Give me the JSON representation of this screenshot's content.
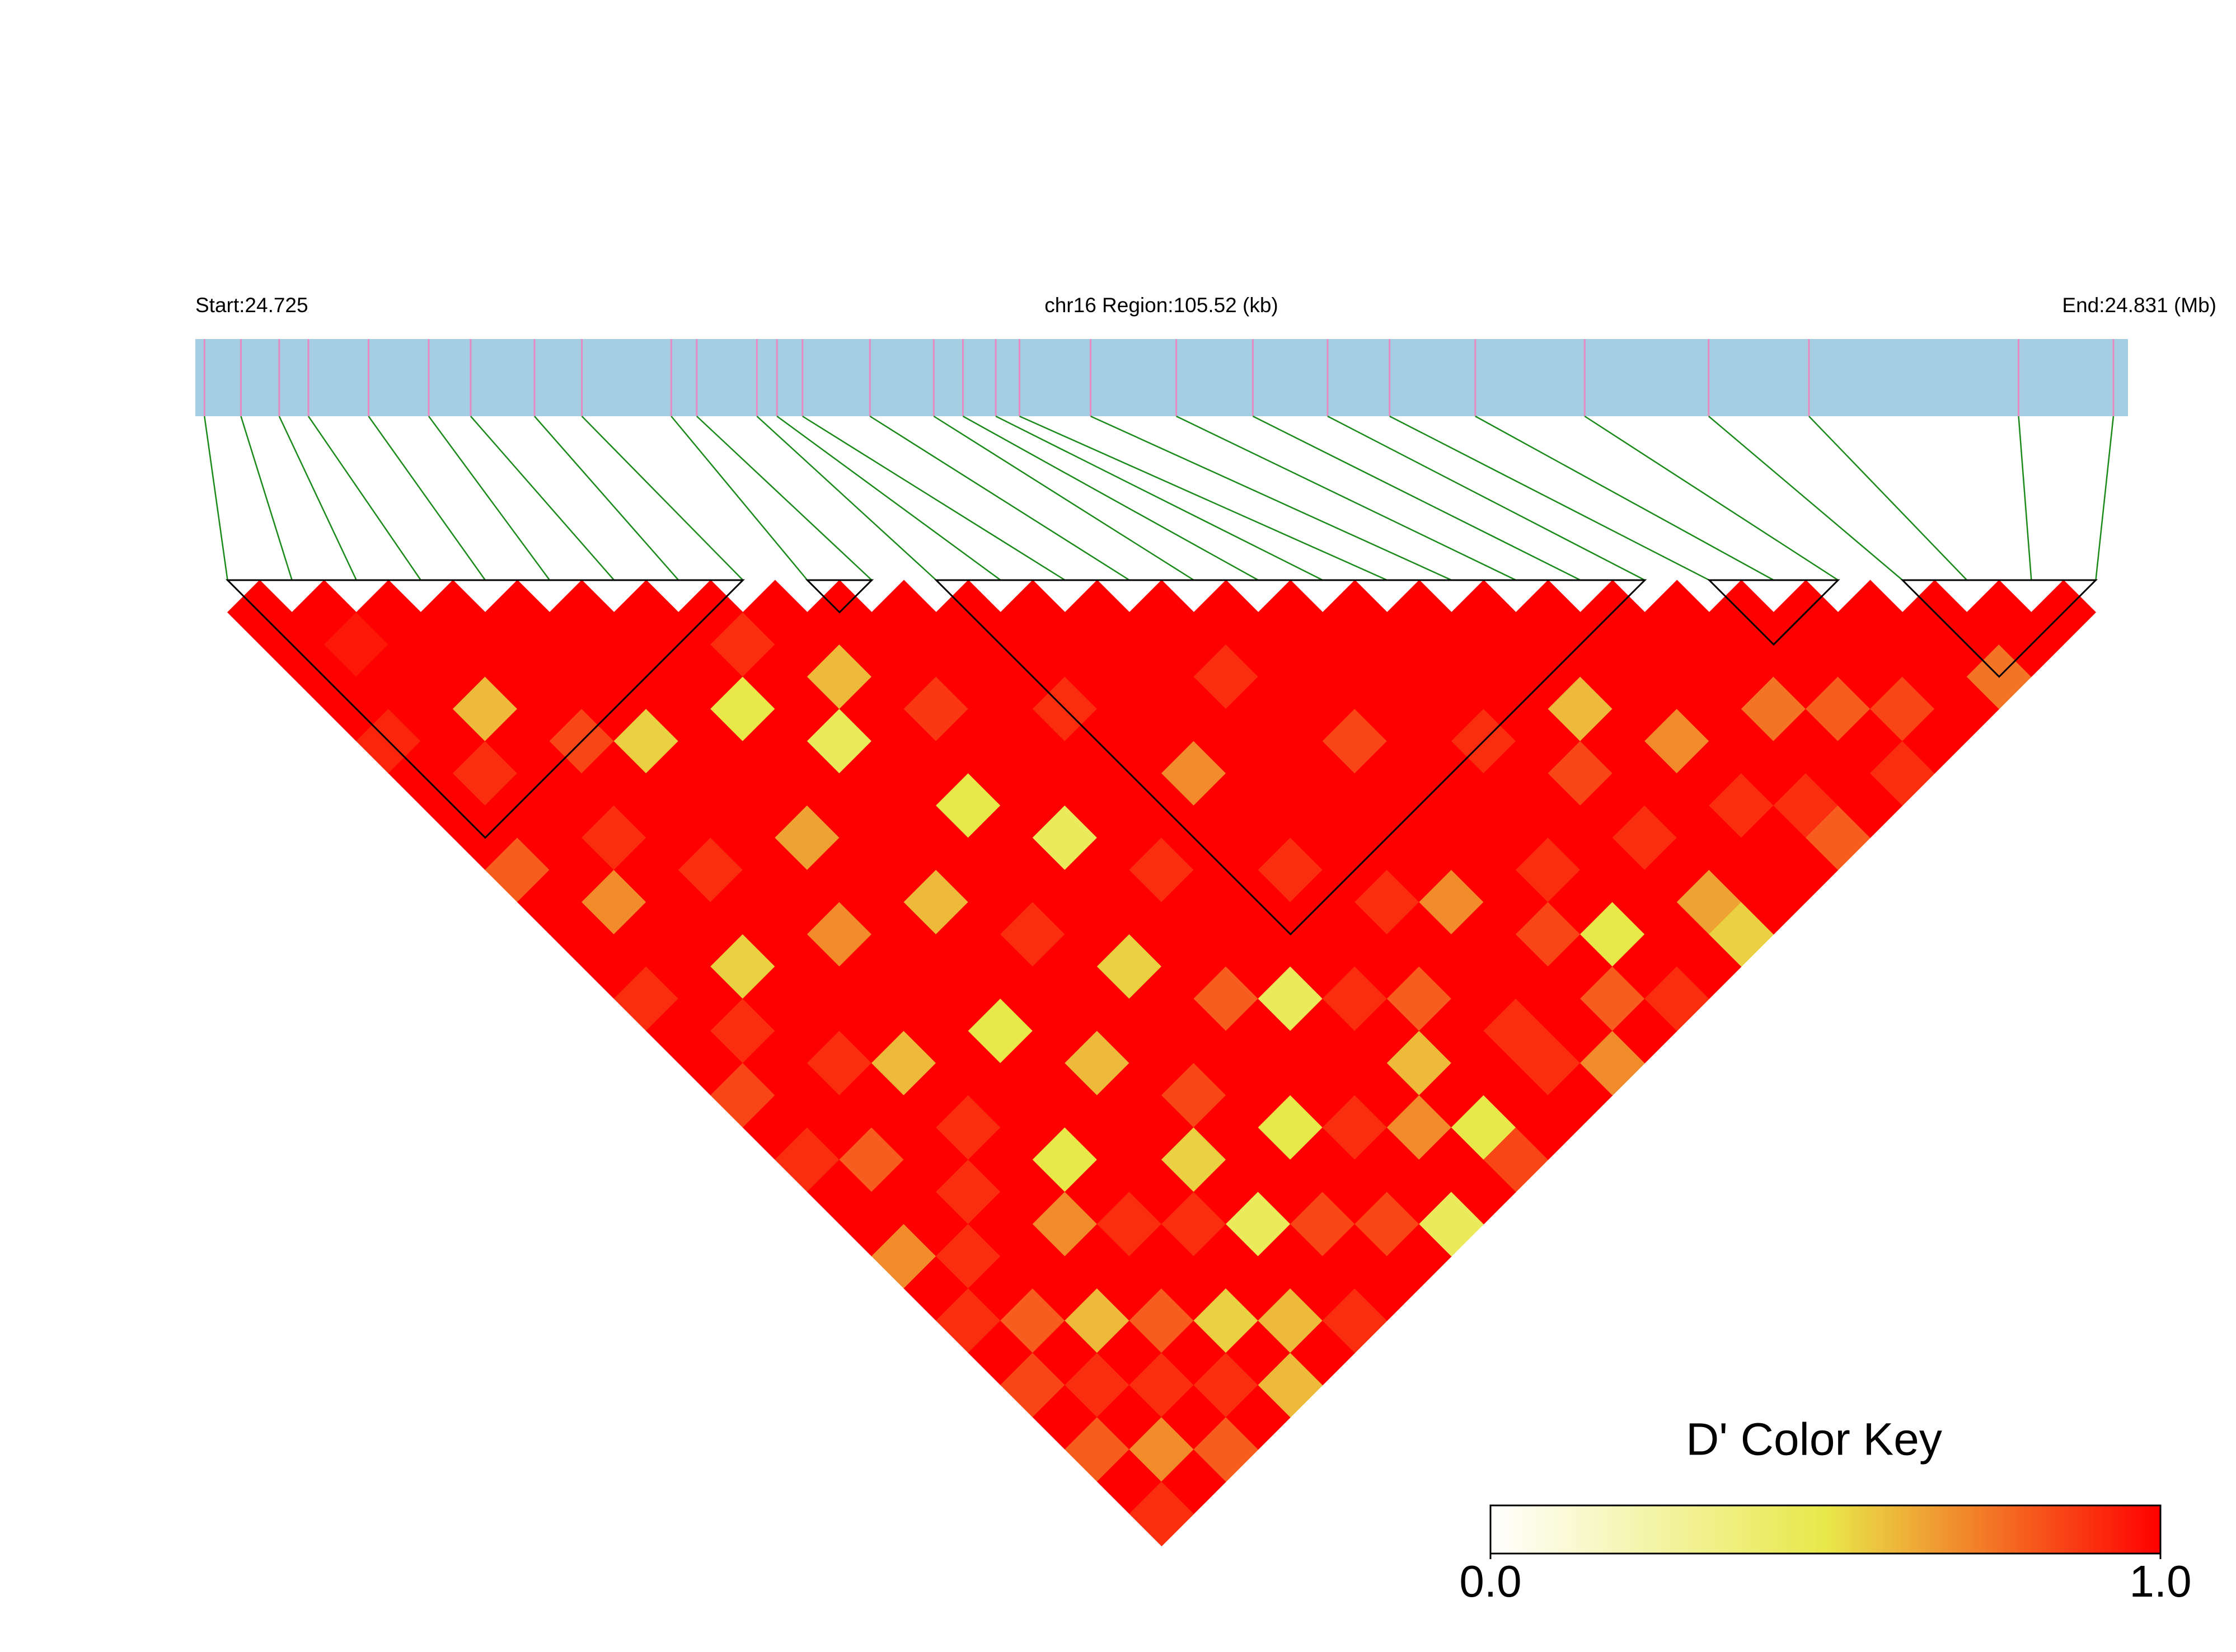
{
  "chart_data": {
    "type": "ld_heatmap",
    "start_label": "Start:24.725",
    "region_label": "chr16 Region:105.52 (kb)",
    "end_label": "End:24.831 (Mb)",
    "xlim": [
      24.725,
      24.831
    ],
    "snp_positions": [
      24.7255,
      24.7275,
      24.7296,
      24.7312,
      24.7345,
      24.7378,
      24.7401,
      24.7436,
      24.7462,
      24.7511,
      24.7525,
      24.7558,
      24.7569,
      24.7583,
      24.762,
      24.7655,
      24.7671,
      24.7689,
      24.7702,
      24.7741,
      24.7788,
      24.783,
      24.7871,
      24.7905,
      24.7952,
      24.8012,
      24.808,
      24.8135,
      24.825,
      24.8302
    ],
    "dprime": [
      [
        1
      ],
      [
        1,
        1
      ],
      [
        1,
        0.95,
        1
      ],
      [
        1,
        1,
        1,
        1
      ],
      [
        0.92,
        1,
        1,
        1,
        1
      ],
      [
        1,
        1,
        0.6,
        1,
        1,
        1
      ],
      [
        1,
        0.9,
        1,
        1,
        1,
        1,
        1
      ],
      [
        1,
        1,
        1,
        0.85,
        1,
        1,
        1,
        1
      ],
      [
        0.8,
        1,
        1,
        1,
        0.55,
        1,
        1,
        0.9,
        1
      ],
      [
        1,
        1,
        0.9,
        1,
        1,
        1,
        0.5,
        1,
        1,
        1
      ],
      [
        1,
        0.7,
        1,
        1,
        1,
        1,
        1,
        1,
        0.6,
        1,
        1
      ],
      [
        1,
        1,
        1,
        0.9,
        1,
        1,
        1,
        0.45,
        1,
        1,
        1,
        1
      ],
      [
        0.9,
        1,
        1,
        1,
        1,
        0.65,
        1,
        1,
        1,
        0.88,
        1,
        1,
        1
      ],
      [
        1,
        1,
        0.55,
        1,
        1,
        1,
        1,
        1,
        1,
        1,
        1,
        1,
        1,
        1
      ],
      [
        1,
        0.9,
        1,
        1,
        0.7,
        1,
        1,
        1,
        0.5,
        1,
        1,
        0.9,
        1,
        1,
        1
      ],
      [
        0.85,
        1,
        1,
        1,
        1,
        1,
        0.6,
        1,
        1,
        1,
        1,
        1,
        1,
        1,
        1,
        1
      ],
      [
        1,
        1,
        0.9,
        1,
        1,
        1,
        1,
        1,
        1,
        0.45,
        1,
        1,
        1,
        1,
        0.9,
        1,
        1
      ],
      [
        0.9,
        1,
        1,
        0.6,
        1,
        1,
        1,
        0.9,
        1,
        1,
        1,
        1,
        0.7,
        1,
        1,
        1,
        1,
        1
      ],
      [
        1,
        0.8,
        1,
        1,
        1,
        0.5,
        1,
        1,
        1,
        1,
        0.9,
        1,
        1,
        1,
        1,
        1,
        1,
        1,
        1
      ],
      [
        1,
        1,
        1,
        0.9,
        1,
        1,
        1,
        1,
        0.55,
        1,
        1,
        1,
        1,
        1,
        1,
        0.85,
        1,
        1,
        1,
        1
      ],
      [
        0.7,
        1,
        0.9,
        1,
        1,
        1,
        0.6,
        1,
        1,
        1,
        1,
        1,
        0.9,
        1,
        1,
        1,
        1,
        1,
        1,
        1,
        1
      ],
      [
        1,
        0.9,
        1,
        1,
        0.5,
        1,
        1,
        1,
        1,
        0.8,
        1,
        1,
        1,
        1,
        1,
        1,
        1,
        0.9,
        1,
        1,
        1,
        1
      ],
      [
        0.9,
        1,
        1,
        0.7,
        1,
        1,
        1,
        0.85,
        1,
        1,
        0.45,
        1,
        1,
        0.9,
        1,
        1,
        1,
        1,
        1,
        0.6,
        1,
        1,
        1
      ],
      [
        1,
        0.8,
        1,
        1,
        0.9,
        1,
        0.55,
        1,
        1,
        1,
        1,
        0.9,
        1,
        1,
        0.7,
        1,
        1,
        1,
        0.85,
        1,
        1,
        1,
        1,
        1
      ],
      [
        0.85,
        1,
        0.6,
        1,
        1,
        0.9,
        1,
        1,
        0.5,
        1,
        1,
        1,
        0.8,
        1,
        1,
        1,
        0.9,
        1,
        1,
        1,
        0.7,
        1,
        1,
        1,
        1
      ],
      [
        1,
        0.9,
        1,
        0.8,
        1,
        1,
        0.45,
        1,
        1,
        0.9,
        1,
        0.6,
        1,
        1,
        1,
        0.85,
        1,
        1,
        0.9,
        1,
        1,
        1,
        0.75,
        1,
        1,
        1
      ],
      [
        0.8,
        1,
        0.9,
        1,
        0.55,
        1,
        1,
        0.85,
        1,
        1,
        0.7,
        1,
        1,
        0.9,
        1,
        1,
        0.5,
        1,
        1,
        1,
        0.9,
        1,
        1,
        0.8,
        1,
        1,
        1
      ],
      [
        1,
        0.7,
        1,
        0.9,
        1,
        0.6,
        1,
        1,
        0.85,
        1,
        1,
        0.5,
        1,
        0.9,
        1,
        0.8,
        1,
        1,
        0.65,
        1,
        1,
        0.9,
        1,
        1,
        0.85,
        1,
        1,
        1
      ],
      [
        0.9,
        1,
        0.8,
        1,
        0.6,
        1,
        0.9,
        1,
        1,
        0.45,
        1,
        0.85,
        1,
        1,
        0.7,
        1,
        0.9,
        1,
        0.55,
        1,
        1,
        0.8,
        1,
        0.9,
        1,
        1,
        0.75,
        1,
        1
      ]
    ],
    "blocks": [
      [
        0,
        8
      ],
      [
        9,
        10
      ],
      [
        11,
        22
      ],
      [
        23,
        25
      ],
      [
        26,
        29
      ]
    ],
    "colorscale": [
      "#ffffff",
      "#e8e84a",
      "#ff0000"
    ],
    "key_title": "D' Color Key",
    "key_lim": [
      0,
      1
    ],
    "key_ticks": [
      {
        "value": 0,
        "label": "0.0"
      },
      {
        "value": 1,
        "label": "1.0"
      }
    ]
  }
}
